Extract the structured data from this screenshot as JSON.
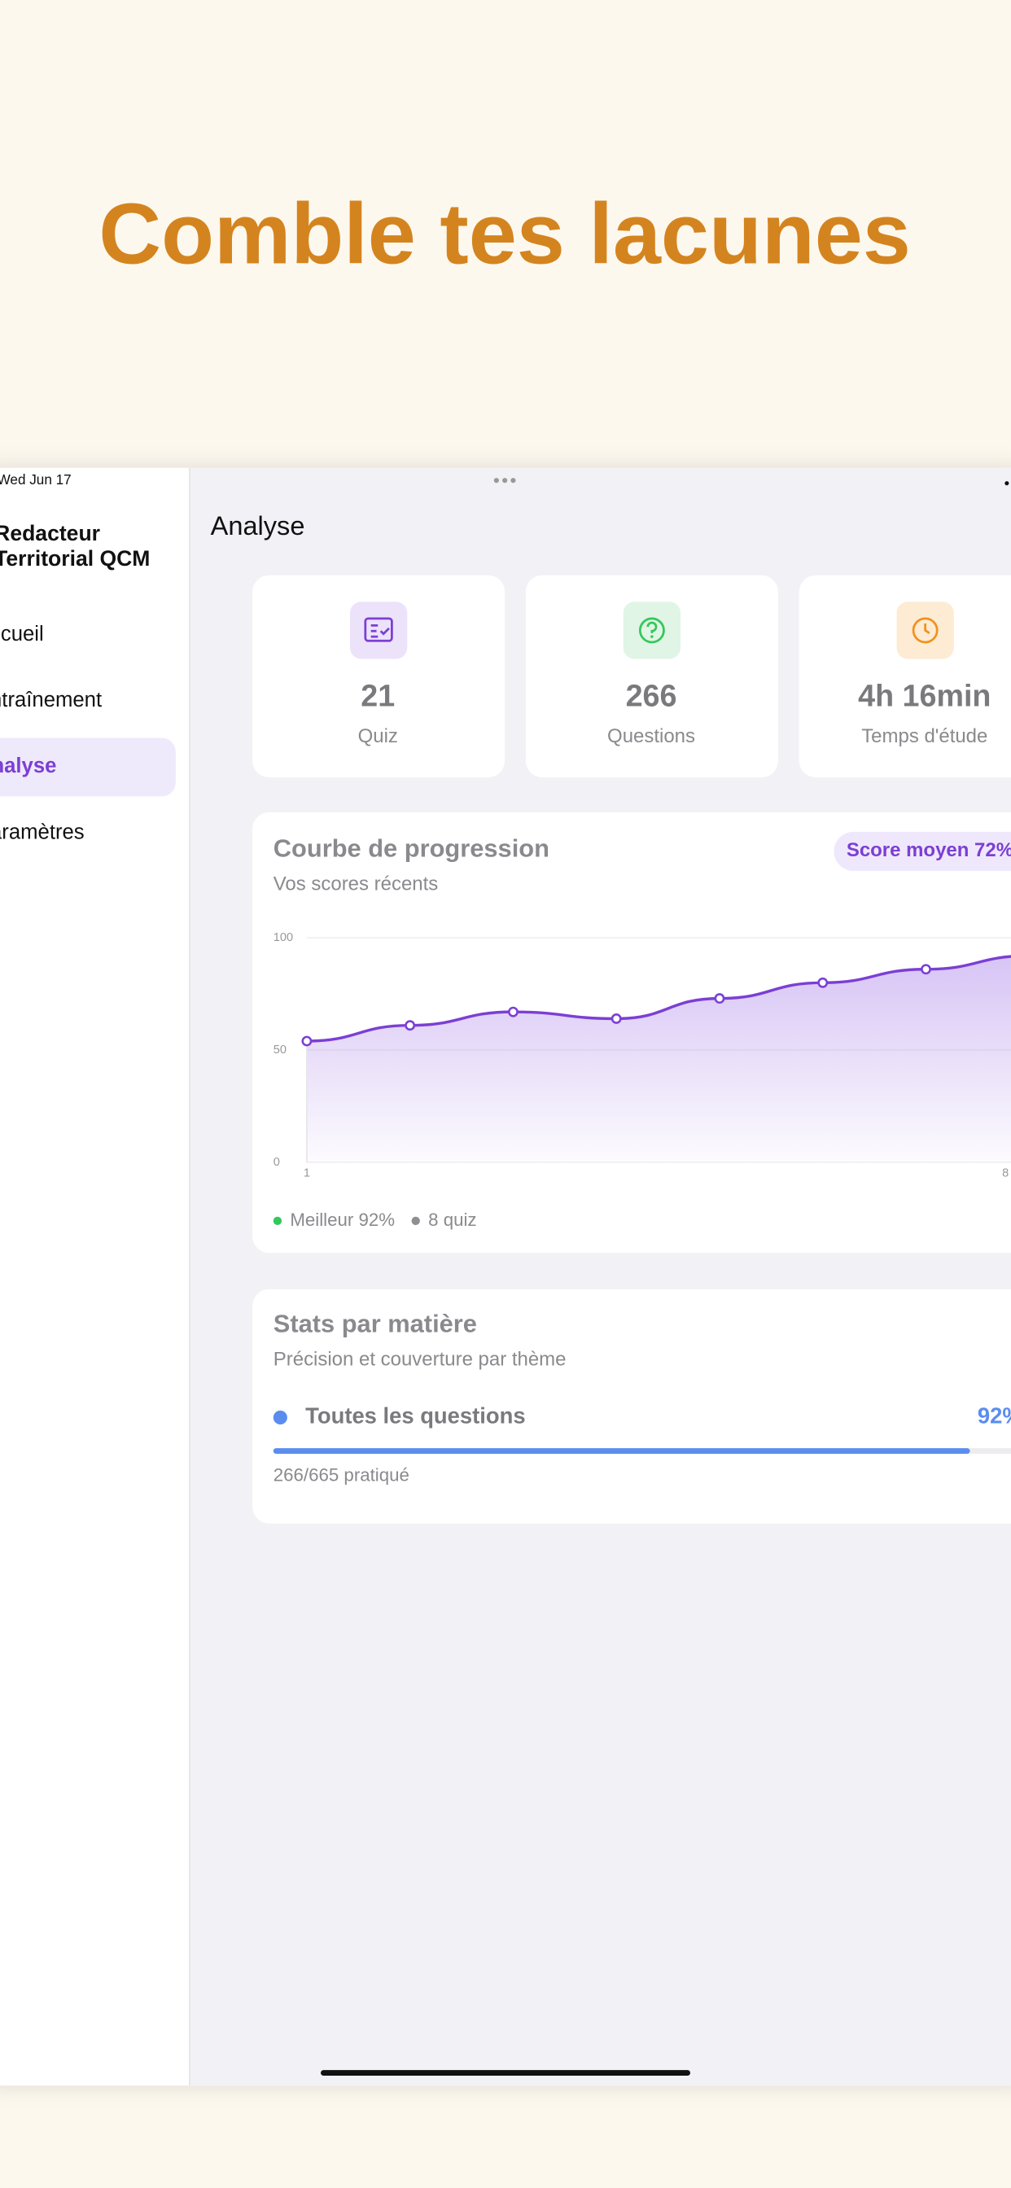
{
  "headline": "Comble tes lacunes",
  "status_bar": {
    "date": "Wed Jun 17"
  },
  "sidebar": {
    "app_title": [
      "Redacteur",
      "Territorial QCM"
    ],
    "nav": [
      "Accueil",
      "Entraînement",
      "Analyse",
      "Paramètres"
    ],
    "active": 2
  },
  "page_title": "Analyse",
  "stats": [
    {
      "value": 21,
      "label": "Quiz"
    },
    {
      "value": 266,
      "label": "Questions"
    },
    {
      "value": "4h 16min",
      "label": "Temps d'étude"
    }
  ],
  "progress_card": {
    "title": "Courbe de progression",
    "subtitle": "Vos scores récents",
    "badge": "Score moyen 72%",
    "chart_data": {
      "type": "line",
      "categories": [
        "1",
        null,
        null,
        null,
        null,
        null,
        null,
        "8"
      ],
      "values": [
        54,
        61,
        67,
        64,
        73,
        80,
        86,
        92
      ],
      "color": "#7b3fd4",
      "ylim": [
        0,
        100
      ],
      "yticks": [
        0,
        50,
        100
      ],
      "grid": true
    },
    "legend": [
      {
        "label": "Meilleur 92%",
        "color": "#34c759"
      },
      {
        "label": "8 quiz",
        "color": "#8e8e93"
      }
    ]
  },
  "subjects_card": {
    "title": "Stats par matière",
    "subtitle": "Précision et couverture par thème",
    "items": [
      {
        "name": "Toutes les questions",
        "accuracy": {
          "value": 92,
          "label": "92%"
        },
        "detail": "266/665 pratiqué",
        "color": "#5b8def"
      }
    ]
  }
}
